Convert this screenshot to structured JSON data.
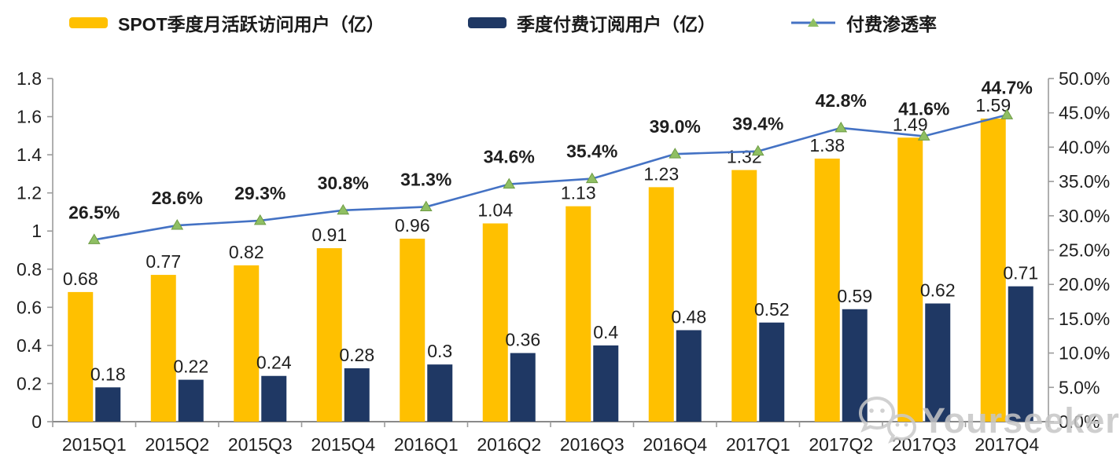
{
  "legend": {
    "items": [
      {
        "swatch": "yellow-bar"
      },
      {
        "swatch": "navy-bar"
      },
      {
        "swatch": "line-with-triangle-marker"
      }
    ]
  },
  "watermark": {
    "text": "Yourseeker",
    "icon": "wechat-icon"
  },
  "colors": {
    "bar_mau": "#FFC000",
    "bar_subs": "#1F3864",
    "line": "#4472C4",
    "marker_fill": "#8FBF63",
    "marker_stroke": "#6E9C44",
    "axis": "#9b9b9b",
    "text": "#1f1f1f",
    "watermark": "#c6c6c6"
  },
  "chart_data": {
    "type": "combo (bar + line)",
    "title": "",
    "legend_position": "top",
    "grid": false,
    "categories": [
      "2015Q1",
      "2015Q2",
      "2015Q3",
      "2015Q4",
      "2016Q1",
      "2016Q2",
      "2016Q3",
      "2016Q4",
      "2017Q1",
      "2017Q2",
      "2017Q3",
      "2017Q4"
    ],
    "series": [
      {
        "name": "SPOT季度月活跃访问用户（亿）",
        "type": "bar",
        "yaxis": "left",
        "color": "#FFC000",
        "values": [
          0.68,
          0.77,
          0.82,
          0.91,
          0.96,
          1.04,
          1.13,
          1.23,
          1.32,
          1.38,
          1.49,
          1.59
        ],
        "labels": [
          "0.68",
          "0.77",
          "0.82",
          "0.91",
          "0.96",
          "1.04",
          "1.13",
          "1.23",
          "1.32",
          "1.38",
          "1.49",
          "1.59"
        ]
      },
      {
        "name": "季度付费订阅用户（亿）",
        "type": "bar",
        "yaxis": "left",
        "color": "#1F3864",
        "values": [
          0.18,
          0.22,
          0.24,
          0.28,
          0.3,
          0.36,
          0.4,
          0.48,
          0.52,
          0.59,
          0.62,
          0.71
        ],
        "labels": [
          "0.18",
          "0.22",
          "0.24",
          "0.28",
          "0.3",
          "0.36",
          "0.4",
          "0.48",
          "0.52",
          "0.59",
          "0.62",
          "0.71"
        ]
      },
      {
        "name": "付费渗透率",
        "type": "line",
        "yaxis": "right",
        "color": "#4472C4",
        "marker": "triangle",
        "values": [
          26.5,
          28.6,
          29.3,
          30.8,
          31.3,
          34.6,
          35.4,
          39.0,
          39.4,
          42.8,
          41.6,
          44.7
        ],
        "labels": [
          "26.5%",
          "28.6%",
          "29.3%",
          "30.8%",
          "31.3%",
          "34.6%",
          "35.4%",
          "39.0%",
          "39.4%",
          "42.8%",
          "41.6%",
          "44.7%"
        ]
      }
    ],
    "axes": {
      "left": {
        "min": 0,
        "max": 1.8,
        "step": 0.2,
        "tick_labels": [
          "0",
          "0.2",
          "0.4",
          "0.6",
          "0.8",
          "1",
          "1.2",
          "1.4",
          "1.6",
          "1.8"
        ]
      },
      "right": {
        "min": 0,
        "max": 50,
        "step": 5,
        "tick_labels": [
          "0.0%",
          "5.0%",
          "10.0%",
          "15.0%",
          "20.0%",
          "25.0%",
          "30.0%",
          "35.0%",
          "40.0%",
          "45.0%",
          "50.0%"
        ]
      }
    }
  }
}
